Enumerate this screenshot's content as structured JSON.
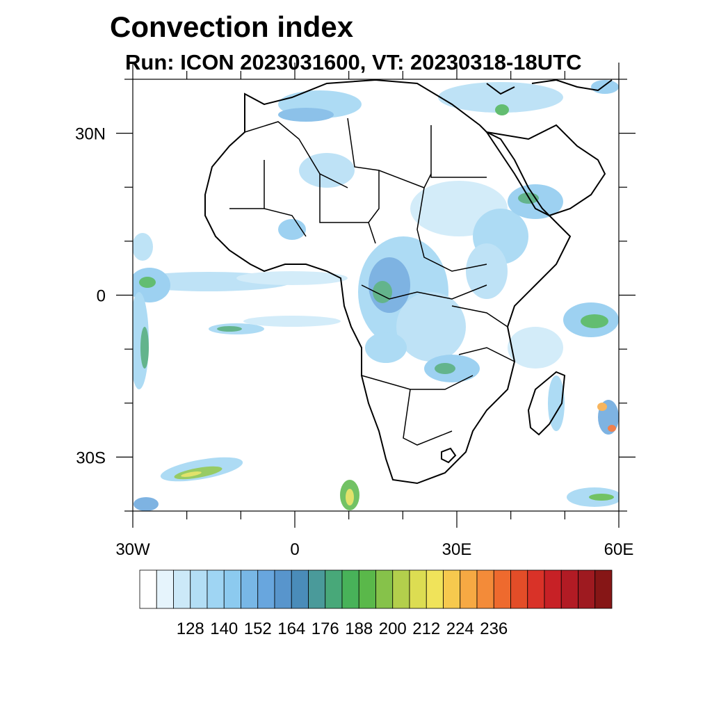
{
  "title": "Convection index",
  "subtitle": "Run: ICON 2023031600,  VT: 20230318-18UTC",
  "map": {
    "lon_range": [
      -30,
      60
    ],
    "lat_range": [
      -40,
      40
    ],
    "lat_labels": [
      {
        "lat": 30,
        "text": "30N"
      },
      {
        "lat": 0,
        "text": "0"
      },
      {
        "lat": -30,
        "text": "30S"
      }
    ],
    "lon_labels": [
      {
        "lon": -30,
        "text": "30W"
      },
      {
        "lon": 0,
        "text": "0"
      },
      {
        "lon": 30,
        "text": "30E"
      },
      {
        "lon": 60,
        "text": "60E"
      }
    ]
  },
  "colorbar": {
    "labels": [
      "128",
      "140",
      "152",
      "164",
      "176",
      "188",
      "200",
      "212",
      "224",
      "236"
    ],
    "colors": [
      "#ffffff",
      "#e6f4fc",
      "#cce9f8",
      "#b3def5",
      "#9fd5f3",
      "#8ccaef",
      "#78b7e6",
      "#68a6de",
      "#5895cc",
      "#4a8cb9",
      "#4a9a9a",
      "#48a879",
      "#48b259",
      "#5ab84a",
      "#86c24a",
      "#b3cf4c",
      "#dcdd52",
      "#f0e35a",
      "#f6c94e",
      "#f6a943",
      "#f38b39",
      "#ee6a2e",
      "#e34d28",
      "#d93228",
      "#c72126",
      "#b21b24",
      "#9e1a20",
      "#861616"
    ]
  }
}
